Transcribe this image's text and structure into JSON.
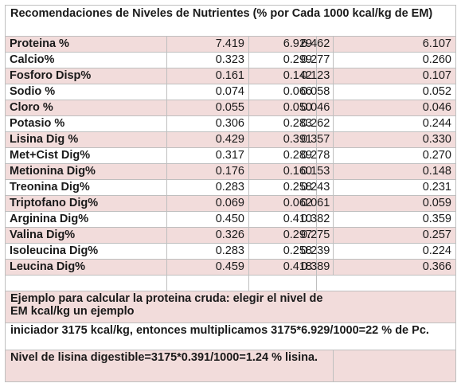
{
  "title": "Recomendaciones de Niveles de Nutrientes (% por Cada 1000 kcal/kg de EM)",
  "rows": [
    {
      "name": "Proteina %",
      "values": [
        "7.419",
        "6.929",
        "6.462",
        "6.107"
      ]
    },
    {
      "name": "Calcio%",
      "values": [
        "0.323",
        "0.299",
        "0.277",
        "0.260"
      ]
    },
    {
      "name": "Fosforo Disp%",
      "values": [
        "0.161",
        "0.142",
        "0.123",
        "0.107"
      ]
    },
    {
      "name": "Sodio %",
      "values": [
        "0.074",
        "0.066",
        "0.058",
        "0.052"
      ]
    },
    {
      "name": "Cloro %",
      "values": [
        "0.055",
        "0.050",
        "0.046",
        "0.046"
      ]
    },
    {
      "name": "Potasio %",
      "values": [
        "0.306",
        "0.283",
        "0.262",
        "0.244"
      ]
    },
    {
      "name": "Lisina Dig %",
      "values": [
        "0.429",
        "0.391",
        "0.357",
        "0.330"
      ]
    },
    {
      "name": "Met+Cist Dig%",
      "values": [
        "0.317",
        "0.289",
        "0.278",
        "0.270"
      ]
    },
    {
      "name": "Metionina Dig%",
      "values": [
        "0.176",
        "0.160",
        "0.153",
        "0.148"
      ]
    },
    {
      "name": "Treonina Dig%",
      "values": [
        "0.283",
        "0.258",
        "0.243",
        "0.231"
      ]
    },
    {
      "name": "Triptofano Dig%",
      "values": [
        "0.069",
        "0.062",
        "0.061",
        "0.059"
      ]
    },
    {
      "name": "Arginina Dig%",
      "values": [
        "0.450",
        "0.410",
        "0.382",
        "0.359"
      ]
    },
    {
      "name": "Valina Dig%",
      "values": [
        "0.326",
        "0.297",
        "0.275",
        "0.257"
      ]
    },
    {
      "name": "Isoleucina Dig%",
      "values": [
        "0.283",
        "0.258",
        "0.239",
        "0.224"
      ]
    },
    {
      "name": "Leucina Dig%",
      "values": [
        "0.459",
        "0.418",
        "0.389",
        "0.366"
      ]
    }
  ],
  "notes": [
    "Ejemplo para calcular la proteina cruda: elegir el nivel de EM kcal/kg un ejemplo",
    "iniciador 3175 kcal/kg, entonces multiplicamos 3175*6.929/1000=22 % de Pc.",
    "Nivel de lisina digestible=3175*0.391/1000=1.24 % lisina."
  ],
  "colors": {
    "pink_row": "#f2dcdb",
    "white_row": "#ffffff",
    "border": "#bfbfbf"
  }
}
